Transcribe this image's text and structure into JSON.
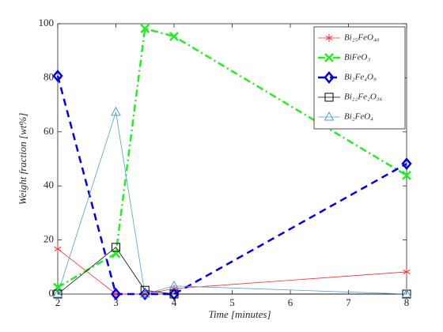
{
  "chart_data": {
    "type": "line",
    "xlabel": "Time [minutes]",
    "ylabel": "Weight fraction [wt%]",
    "x": [
      2,
      3,
      3.5,
      4,
      8
    ],
    "xlim": [
      2,
      8
    ],
    "xticks": [
      2,
      3,
      4,
      5,
      6,
      7,
      8
    ],
    "ylim": [
      0,
      100
    ],
    "yticks": [
      0,
      20,
      40,
      60,
      80,
      100
    ],
    "grid": false,
    "legend": "upper right",
    "series": [
      {
        "name": "Bi₂₅FeO₄₀",
        "color": "#ff2a2a",
        "marker": "asterisk",
        "linestyle": "solid",
        "linewidth": 0.8,
        "values": [
          16.7,
          0,
          0,
          2,
          8.2
        ]
      },
      {
        "name": "BiFeO₃",
        "color": "#22ee22",
        "marker": "x",
        "linestyle": "dashdot",
        "linewidth": 2.5,
        "values": [
          2.5,
          15,
          98.2,
          95.3,
          43.9
        ]
      },
      {
        "name": "Bi₂Fe₄O₉",
        "color": "#0000ee",
        "marker": "diamond",
        "linestyle": "dashed",
        "linewidth": 2.5,
        "values": [
          80.7,
          0,
          0,
          0,
          48.2
        ]
      },
      {
        "name": "Bi₂₂Fe₂O₃₆",
        "color": "#000000",
        "marker": "square",
        "linestyle": "solid",
        "linewidth": 0.8,
        "values": [
          0,
          17.3,
          1.4,
          0,
          0
        ]
      },
      {
        "name": "Bi₂FeO₄",
        "color": "#4d9fd6",
        "marker": "triangle",
        "linestyle": "solid",
        "linewidth": 0.8,
        "values": [
          0,
          67.3,
          0,
          3,
          0
        ]
      }
    ]
  }
}
